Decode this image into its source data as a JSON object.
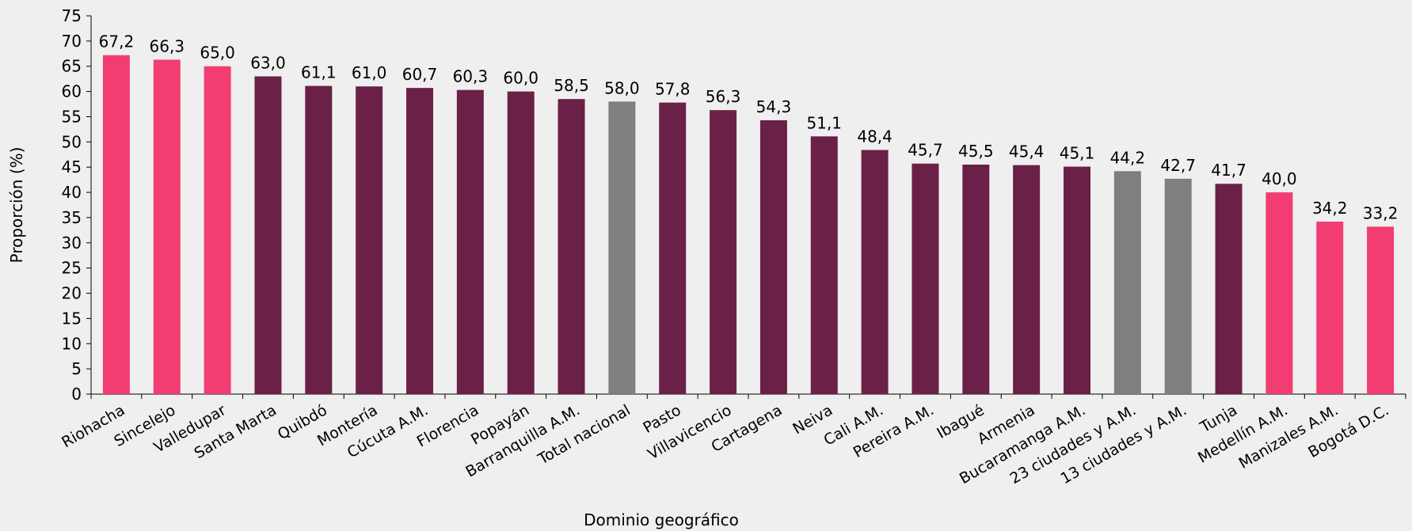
{
  "chart_data": {
    "type": "bar",
    "title": "",
    "xlabel": "Dominio geográfico",
    "ylabel": "Proporción (%)",
    "ylim": [
      0,
      75
    ],
    "ytick_step": 5,
    "grid": false,
    "legend": "none",
    "categories": [
      "Riohacha",
      "Sincelejo",
      "Valledupar",
      "Santa Marta",
      "Quibdó",
      "Montería",
      "Cúcuta A.M.",
      "Florencia",
      "Popayán",
      "Barranquilla A.M.",
      "Total nacional",
      "Pasto",
      "Villavicencio",
      "Cartagena",
      "Neiva",
      "Cali A.M.",
      "Pereira A.M.",
      "Ibagué",
      "Armenia",
      "Bucaramanga A.M.",
      "23 ciudades y A.M.",
      "13 ciudades y A.M.",
      "Tunja",
      "Medellín A.M.",
      "Manizales A.M.",
      "Bogotá D.C."
    ],
    "values": [
      67.2,
      66.3,
      65.0,
      63.0,
      61.1,
      61.0,
      60.7,
      60.3,
      60.0,
      58.5,
      58.0,
      57.8,
      56.3,
      54.3,
      51.1,
      48.4,
      45.7,
      45.5,
      45.4,
      45.1,
      44.2,
      42.7,
      41.7,
      40.0,
      34.2,
      33.2
    ],
    "value_labels": [
      "67,2",
      "66,3",
      "65,0",
      "63,0",
      "61,1",
      "61,0",
      "60,7",
      "60,3",
      "60,0",
      "58,5",
      "58,0",
      "57,8",
      "56,3",
      "54,3",
      "51,1",
      "48,4",
      "45,7",
      "45,5",
      "45,4",
      "45,1",
      "44,2",
      "42,7",
      "41,7",
      "40,0",
      "34,2",
      "33,2"
    ],
    "bar_groups": [
      "pink",
      "pink",
      "pink",
      "purple",
      "purple",
      "purple",
      "purple",
      "purple",
      "purple",
      "purple",
      "gray",
      "purple",
      "purple",
      "purple",
      "purple",
      "purple",
      "purple",
      "purple",
      "purple",
      "purple",
      "gray",
      "gray",
      "purple",
      "pink",
      "pink",
      "pink"
    ],
    "colors": {
      "pink": "#f23d72",
      "purple": "#6b2048",
      "gray": "#7f7f7f",
      "axis": "#000000"
    }
  }
}
